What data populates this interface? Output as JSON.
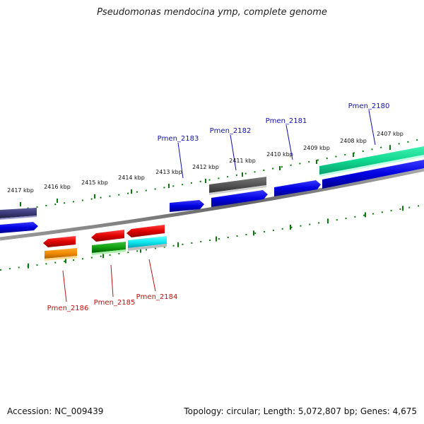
{
  "title": "Pseudomonas mendocina ymp, complete genome",
  "footer": {
    "accession": "Accession: NC_009439",
    "summary": "Topology: circular; Length: 5,072,807 bp; Genes: 4,675"
  },
  "colors": {
    "backbone": "#777777",
    "ticks": "#0a7a0a",
    "label_plus": "#1010b0",
    "label_minus": "#c01010"
  },
  "scale_labels": [
    "2417 kbp",
    "2416 kbp",
    "2415 kbp",
    "2414 kbp",
    "2413 kbp",
    "2412 kbp",
    "2411 kbp",
    "2410 kbp",
    "2409 kbp",
    "2408 kbp",
    "2407 kbp"
  ],
  "gene_labels": [
    {
      "text": "Pmen_2180",
      "strand": "plus"
    },
    {
      "text": "Pmen_2181",
      "strand": "plus"
    },
    {
      "text": "Pmen_2182",
      "strand": "plus"
    },
    {
      "text": "Pmen_2183",
      "strand": "plus"
    },
    {
      "text": "Pmen_2184",
      "strand": "minus"
    },
    {
      "text": "Pmen_2185",
      "strand": "minus"
    },
    {
      "text": "Pmen_2186",
      "strand": "minus"
    }
  ]
}
